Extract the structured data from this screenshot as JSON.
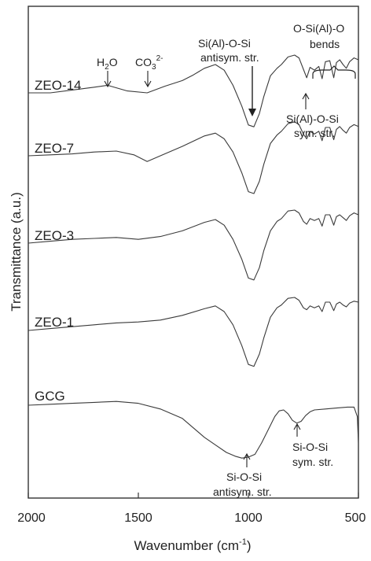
{
  "chart_data": {
    "type": "line",
    "xlabel": "Wavenumber (cm",
    "xlabel_sup": "-1",
    "xlabel_end": ")",
    "ylabel": "Transmittance (a.u.)",
    "xlim": [
      2000,
      500
    ],
    "x_reversed": true,
    "xticks": [
      2000,
      1500,
      1000,
      500
    ],
    "y_ticks": false,
    "grid": false,
    "series": [
      {
        "name": "ZEO-14",
        "points": [
          [
            2000,
            0.0
          ],
          [
            1900,
            0.0
          ],
          [
            1800,
            0.3
          ],
          [
            1700,
            0.6
          ],
          [
            1640,
            0.8
          ],
          [
            1550,
            0.2
          ],
          [
            1460,
            0.0
          ],
          [
            1380,
            0.7
          ],
          [
            1300,
            1.3
          ],
          [
            1250,
            1.9
          ],
          [
            1200,
            2.6
          ],
          [
            1150,
            3.0
          ],
          [
            1110,
            2.4
          ],
          [
            1070,
            0.8
          ],
          [
            1030,
            -1.4
          ],
          [
            1000,
            -3.4
          ],
          [
            975,
            -3.6
          ],
          [
            950,
            -2.2
          ],
          [
            930,
            -0.4
          ],
          [
            900,
            1.8
          ],
          [
            870,
            2.6
          ],
          [
            850,
            3.0
          ],
          [
            820,
            3.8
          ],
          [
            790,
            4.0
          ],
          [
            770,
            3.7
          ],
          [
            750,
            2.5
          ],
          [
            735,
            1.6
          ],
          [
            720,
            2.7
          ],
          [
            700,
            2.4
          ],
          [
            680,
            2.8
          ],
          [
            665,
            1.5
          ],
          [
            650,
            3.3
          ],
          [
            630,
            3.4
          ],
          [
            612,
            1.6
          ],
          [
            600,
            3.2
          ],
          [
            585,
            3.5
          ],
          [
            570,
            3.0
          ],
          [
            555,
            2.6
          ],
          [
            540,
            3.3
          ],
          [
            520,
            3.7
          ],
          [
            500,
            3.5
          ]
        ]
      },
      {
        "name": "ZEO-7",
        "points": [
          [
            2000,
            0.0
          ],
          [
            1900,
            0.1
          ],
          [
            1800,
            0.2
          ],
          [
            1700,
            0.4
          ],
          [
            1600,
            0.5
          ],
          [
            1520,
            0.1
          ],
          [
            1460,
            -0.6
          ],
          [
            1400,
            0.0
          ],
          [
            1300,
            1.0
          ],
          [
            1200,
            2.1
          ],
          [
            1150,
            2.4
          ],
          [
            1110,
            1.8
          ],
          [
            1070,
            0.4
          ],
          [
            1030,
            -1.8
          ],
          [
            1000,
            -3.8
          ],
          [
            975,
            -4.0
          ],
          [
            950,
            -2.7
          ],
          [
            930,
            -0.9
          ],
          [
            900,
            1.3
          ],
          [
            870,
            2.2
          ],
          [
            850,
            2.6
          ],
          [
            820,
            3.4
          ],
          [
            790,
            3.6
          ],
          [
            770,
            3.3
          ],
          [
            750,
            2.3
          ],
          [
            735,
            1.8
          ],
          [
            720,
            2.6
          ],
          [
            700,
            2.3
          ],
          [
            680,
            2.6
          ],
          [
            665,
            1.6
          ],
          [
            650,
            3.0
          ],
          [
            630,
            3.0
          ],
          [
            612,
            1.7
          ],
          [
            600,
            2.8
          ],
          [
            585,
            3.1
          ],
          [
            570,
            2.7
          ],
          [
            555,
            2.4
          ],
          [
            540,
            3.0
          ],
          [
            520,
            3.3
          ],
          [
            500,
            3.1
          ]
        ]
      },
      {
        "name": "ZEO-3",
        "points": [
          [
            2000,
            0.0
          ],
          [
            1900,
            0.2
          ],
          [
            1800,
            0.4
          ],
          [
            1700,
            0.5
          ],
          [
            1600,
            0.6
          ],
          [
            1500,
            0.4
          ],
          [
            1400,
            0.7
          ],
          [
            1300,
            1.3
          ],
          [
            1200,
            2.2
          ],
          [
            1150,
            2.5
          ],
          [
            1110,
            1.9
          ],
          [
            1070,
            0.4
          ],
          [
            1030,
            -1.7
          ],
          [
            1000,
            -3.7
          ],
          [
            975,
            -3.9
          ],
          [
            950,
            -2.6
          ],
          [
            930,
            -0.8
          ],
          [
            900,
            1.3
          ],
          [
            870,
            2.3
          ],
          [
            850,
            2.6
          ],
          [
            820,
            3.4
          ],
          [
            790,
            3.5
          ],
          [
            770,
            3.2
          ],
          [
            750,
            2.3
          ],
          [
            735,
            2.0
          ],
          [
            720,
            2.6
          ],
          [
            700,
            2.4
          ],
          [
            680,
            2.6
          ],
          [
            665,
            1.8
          ],
          [
            650,
            3.0
          ],
          [
            630,
            3.0
          ],
          [
            612,
            1.9
          ],
          [
            600,
            2.8
          ],
          [
            585,
            3.0
          ],
          [
            570,
            2.7
          ],
          [
            555,
            2.4
          ],
          [
            540,
            2.9
          ],
          [
            520,
            3.2
          ],
          [
            500,
            3.0
          ]
        ]
      },
      {
        "name": "ZEO-1",
        "points": [
          [
            2000,
            0.0
          ],
          [
            1900,
            0.2
          ],
          [
            1800,
            0.4
          ],
          [
            1700,
            0.6
          ],
          [
            1600,
            0.8
          ],
          [
            1500,
            0.9
          ],
          [
            1400,
            1.1
          ],
          [
            1300,
            1.6
          ],
          [
            1200,
            2.3
          ],
          [
            1150,
            2.6
          ],
          [
            1110,
            2.0
          ],
          [
            1070,
            0.6
          ],
          [
            1030,
            -1.6
          ],
          [
            1000,
            -3.6
          ],
          [
            975,
            -3.8
          ],
          [
            950,
            -2.5
          ],
          [
            930,
            -0.8
          ],
          [
            900,
            1.4
          ],
          [
            870,
            2.4
          ],
          [
            850,
            2.7
          ],
          [
            820,
            3.4
          ],
          [
            790,
            3.5
          ],
          [
            770,
            3.2
          ],
          [
            750,
            2.4
          ],
          [
            735,
            2.2
          ],
          [
            720,
            2.6
          ],
          [
            700,
            2.4
          ],
          [
            680,
            2.6
          ],
          [
            665,
            2.0
          ],
          [
            650,
            3.0
          ],
          [
            630,
            3.0
          ],
          [
            612,
            2.1
          ],
          [
            600,
            2.8
          ],
          [
            585,
            3.0
          ],
          [
            570,
            2.7
          ],
          [
            555,
            2.5
          ],
          [
            540,
            2.9
          ],
          [
            520,
            3.1
          ],
          [
            500,
            3.0
          ]
        ]
      },
      {
        "name": "GCG",
        "points": [
          [
            2000,
            0.0
          ],
          [
            1900,
            0.1
          ],
          [
            1800,
            0.2
          ],
          [
            1700,
            0.3
          ],
          [
            1600,
            0.4
          ],
          [
            1500,
            0.2
          ],
          [
            1400,
            -0.4
          ],
          [
            1300,
            -1.4
          ],
          [
            1250,
            -2.4
          ],
          [
            1200,
            -3.4
          ],
          [
            1150,
            -4.2
          ],
          [
            1100,
            -5.0
          ],
          [
            1060,
            -5.4
          ],
          [
            1030,
            -5.6
          ],
          [
            1000,
            -5.5
          ],
          [
            970,
            -5.2
          ],
          [
            940,
            -4.0
          ],
          [
            910,
            -2.6
          ],
          [
            880,
            -1.2
          ],
          [
            860,
            -0.6
          ],
          [
            840,
            -0.5
          ],
          [
            820,
            -0.9
          ],
          [
            800,
            -1.6
          ],
          [
            780,
            -1.9
          ],
          [
            760,
            -1.7
          ],
          [
            740,
            -1.1
          ],
          [
            720,
            -0.7
          ],
          [
            700,
            -0.5
          ],
          [
            650,
            -0.4
          ],
          [
            600,
            -0.3
          ],
          [
            550,
            -0.2
          ],
          [
            520,
            -0.2
          ],
          [
            505,
            -1.2
          ],
          [
            500,
            -4.0
          ]
        ]
      }
    ],
    "annotations": {
      "h2o": "H",
      "h2o_sub": "2",
      "h2o_end": "O",
      "co3": "CO",
      "co3_sub": "3",
      "co3_sup": "2-",
      "antisym_top_1": "Si(Al)-O-Si",
      "antisym_top_2": "antisym. str.",
      "bends_1": "O-Si(Al)-O",
      "bends_2": "bends",
      "sym_top_1": "Si(Al)-O-Si",
      "sym_top_2": "sym. str.",
      "gcg_antisym_1": "Si-O-Si",
      "gcg_antisym_2": "antisym. str.",
      "gcg_sym_1": "Si-O-Si",
      "gcg_sym_2": "sym. str."
    }
  }
}
